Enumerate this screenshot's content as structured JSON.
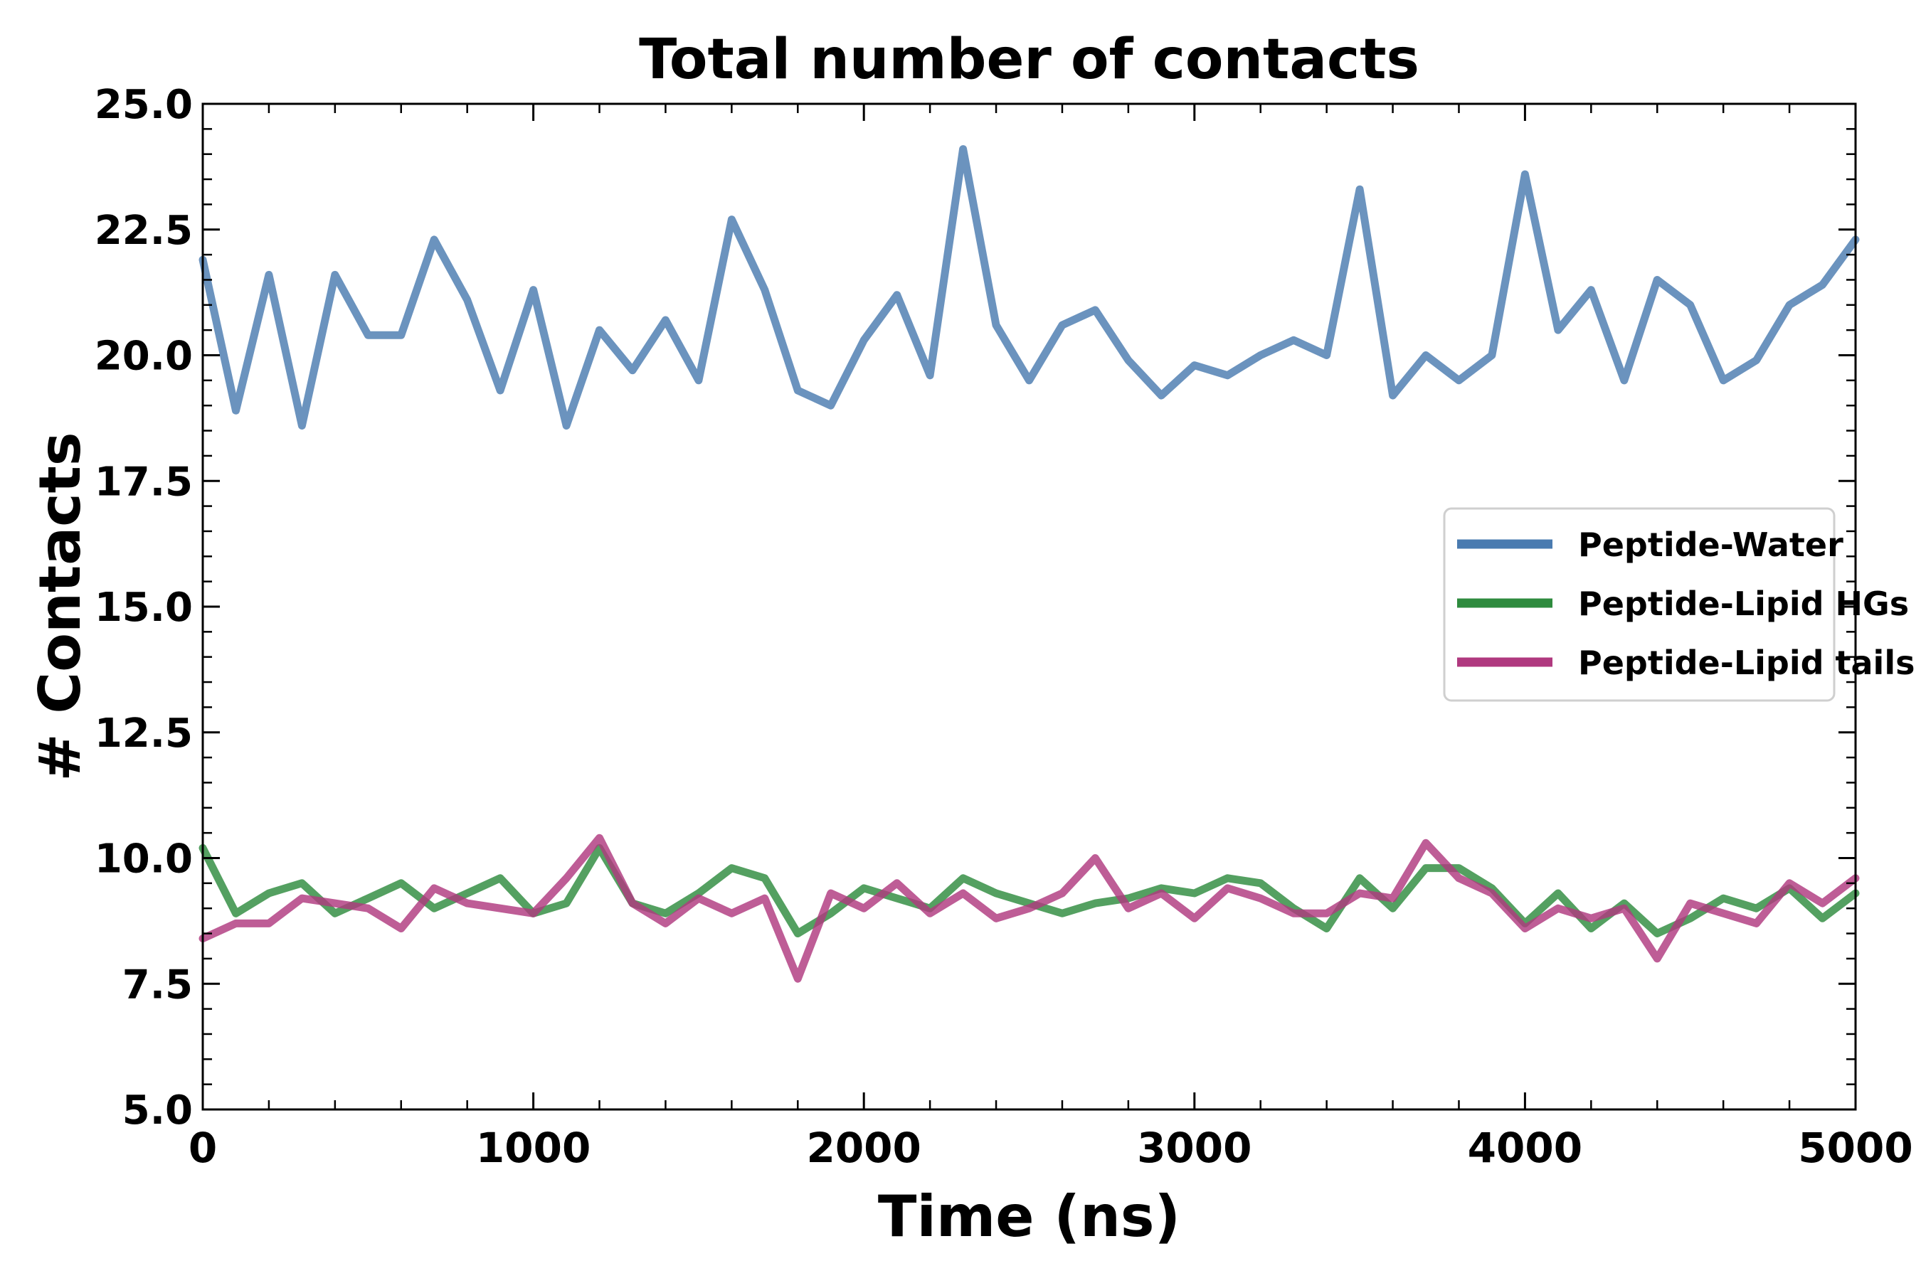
{
  "chart_data": {
    "type": "line",
    "title": "Total number of contacts",
    "xlabel": "Time (ns)",
    "ylabel": "# Contacts",
    "xlim": [
      0,
      5000
    ],
    "ylim": [
      5.0,
      25.0
    ],
    "xticks": [
      0,
      1000,
      2000,
      3000,
      4000,
      5000
    ],
    "yticks": [
      5.0,
      7.5,
      10.0,
      12.5,
      15.0,
      17.5,
      20.0,
      22.5,
      25.0
    ],
    "grid": false,
    "legend_position": "center-right",
    "x": [
      0,
      100,
      200,
      300,
      400,
      500,
      600,
      700,
      800,
      900,
      1000,
      1100,
      1200,
      1300,
      1400,
      1500,
      1600,
      1700,
      1800,
      1900,
      2000,
      2100,
      2200,
      2300,
      2400,
      2500,
      2600,
      2700,
      2800,
      2900,
      3000,
      3100,
      3200,
      3300,
      3400,
      3500,
      3600,
      3700,
      3800,
      3900,
      4000,
      4100,
      4200,
      4300,
      4400,
      4500,
      4600,
      4700,
      4800,
      4900,
      5000
    ],
    "series": [
      {
        "name": "Peptide-Water",
        "color": "#4a7bb0",
        "values": [
          21.9,
          18.9,
          21.6,
          18.6,
          21.6,
          20.4,
          20.4,
          22.3,
          21.1,
          19.3,
          21.3,
          18.6,
          20.5,
          19.7,
          20.7,
          19.5,
          22.7,
          21.3,
          19.3,
          19.0,
          20.3,
          21.2,
          19.6,
          24.1,
          20.6,
          19.5,
          20.6,
          20.9,
          19.9,
          19.2,
          19.8,
          19.6,
          20.0,
          20.3,
          20.0,
          23.3,
          19.2,
          20.0,
          19.5,
          20.0,
          23.6,
          20.5,
          21.3,
          19.5,
          21.5,
          21.0,
          19.5,
          19.9,
          21.0,
          21.4,
          22.3
        ]
      },
      {
        "name": "Peptide-Lipid HGs",
        "color": "#2e8b3e",
        "values": [
          10.2,
          8.9,
          9.3,
          9.5,
          8.9,
          9.2,
          9.5,
          9.0,
          9.3,
          9.6,
          8.9,
          9.1,
          10.2,
          9.1,
          8.9,
          9.3,
          9.8,
          9.6,
          8.5,
          8.9,
          9.4,
          9.2,
          9.0,
          9.6,
          9.3,
          9.1,
          8.9,
          9.1,
          9.2,
          9.4,
          9.3,
          9.6,
          9.5,
          9.0,
          8.6,
          9.6,
          9.0,
          9.8,
          9.8,
          9.4,
          8.7,
          9.3,
          8.6,
          9.1,
          8.5,
          8.8,
          9.2,
          9.0,
          9.4,
          8.8,
          9.3
        ]
      },
      {
        "name": "Peptide-Lipid tails",
        "color": "#b0397f",
        "values": [
          8.4,
          8.7,
          8.7,
          9.2,
          9.1,
          9.0,
          8.6,
          9.4,
          9.1,
          9.0,
          8.9,
          9.6,
          10.4,
          9.1,
          8.7,
          9.2,
          8.9,
          9.2,
          7.6,
          9.3,
          9.0,
          9.5,
          8.9,
          9.3,
          8.8,
          9.0,
          9.3,
          10.0,
          9.0,
          9.3,
          8.8,
          9.4,
          9.2,
          8.9,
          8.9,
          9.3,
          9.2,
          10.3,
          9.6,
          9.3,
          8.6,
          9.0,
          8.8,
          9.0,
          8.0,
          9.1,
          8.9,
          8.7,
          9.5,
          9.1,
          9.6
        ]
      }
    ]
  }
}
